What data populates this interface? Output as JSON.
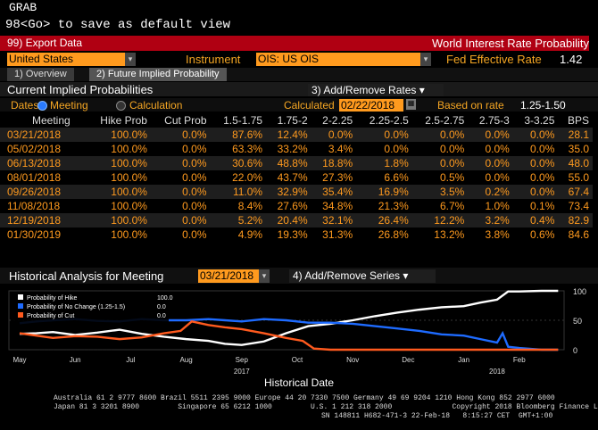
{
  "command": {
    "line1": "GRAB",
    "line2": "98<Go> to save as default view"
  },
  "toolbar": {
    "export": "99) Export Data",
    "title": "World Interest Rate Probability"
  },
  "filters": {
    "country": "United States",
    "instrument_label": "Instrument",
    "instrument": "OIS: US OIS",
    "fed_rate_label": "Fed Effective Rate",
    "fed_rate_value": "1.42"
  },
  "tabs": [
    {
      "label": "1) Overview"
    },
    {
      "label": "2) Future Implied Probability"
    }
  ],
  "section": {
    "title": "Current Implied Probabilities",
    "add_remove": "3) Add/Remove Rates ▾"
  },
  "options": {
    "dates_label": "Dates",
    "meeting_label": "Meeting",
    "calculation_label": "Calculation",
    "calculated_label": "Calculated",
    "calculated_date": "02/22/2018",
    "based_label": "Based on rate",
    "based_value": "1.25-1.50"
  },
  "table": {
    "headers": [
      "Meeting",
      "Hike Prob",
      "Cut Prob",
      "1.5-1.75",
      "1.75-2",
      "2-2.25",
      "2.25-2.5",
      "2.5-2.75",
      "2.75-3",
      "3-3.25",
      "BPS"
    ],
    "rows": [
      [
        "03/21/2018",
        "100.0%",
        "0.0%",
        "87.6%",
        "12.4%",
        "0.0%",
        "0.0%",
        "0.0%",
        "0.0%",
        "0.0%",
        "28.1"
      ],
      [
        "05/02/2018",
        "100.0%",
        "0.0%",
        "63.3%",
        "33.2%",
        "3.4%",
        "0.0%",
        "0.0%",
        "0.0%",
        "0.0%",
        "35.0"
      ],
      [
        "06/13/2018",
        "100.0%",
        "0.0%",
        "30.6%",
        "48.8%",
        "18.8%",
        "1.8%",
        "0.0%",
        "0.0%",
        "0.0%",
        "48.0"
      ],
      [
        "08/01/2018",
        "100.0%",
        "0.0%",
        "22.0%",
        "43.7%",
        "27.3%",
        "6.6%",
        "0.5%",
        "0.0%",
        "0.0%",
        "55.0"
      ],
      [
        "09/26/2018",
        "100.0%",
        "0.0%",
        "11.0%",
        "32.9%",
        "35.4%",
        "16.9%",
        "3.5%",
        "0.2%",
        "0.0%",
        "67.4"
      ],
      [
        "11/08/2018",
        "100.0%",
        "0.0%",
        "8.4%",
        "27.6%",
        "34.8%",
        "21.3%",
        "6.7%",
        "1.0%",
        "0.1%",
        "73.4"
      ],
      [
        "12/19/2018",
        "100.0%",
        "0.0%",
        "5.2%",
        "20.4%",
        "32.1%",
        "26.4%",
        "12.2%",
        "3.2%",
        "0.4%",
        "82.9"
      ],
      [
        "01/30/2019",
        "100.0%",
        "0.0%",
        "4.9%",
        "19.3%",
        "31.3%",
        "26.8%",
        "13.2%",
        "3.8%",
        "0.6%",
        "84.6"
      ]
    ]
  },
  "history": {
    "title": "Historical Analysis for Meeting",
    "meeting_date": "03/21/2018",
    "series_btn": "4) Add/Remove Series ▾"
  },
  "chart_data": {
    "type": "line",
    "xlabel": "Historical Date",
    "x_ticks": [
      "May",
      "Jun",
      "Jul",
      "Aug",
      "Sep",
      "Oct",
      "Nov",
      "Dec",
      "Jan",
      "Feb"
    ],
    "year_labels": [
      "2017",
      "2018"
    ],
    "y_ticks": [
      0,
      50,
      100
    ],
    "ylim": [
      0,
      100
    ],
    "legend": [
      {
        "name": "Probability of Hike",
        "value": "100.0",
        "color": "#ffffff"
      },
      {
        "name": "Probability of No Change (1.25-1.5)",
        "value": "0.0",
        "color": "#1e6bff"
      },
      {
        "name": "Probability of Cut",
        "value": "0.0",
        "color": "#ff5a1e"
      }
    ],
    "series": [
      {
        "name": "Probability of Hike",
        "color": "#ffffff",
        "x": [
          0,
          0.3,
          0.6,
          1.0,
          1.4,
          1.8,
          2.2,
          2.6,
          3.0,
          3.4,
          3.7,
          4.0,
          4.4,
          4.8,
          5.2,
          5.6,
          6.0,
          6.4,
          6.8,
          7.2,
          7.6,
          8.0,
          8.3,
          8.6,
          8.8,
          9.0,
          9.4,
          9.7
        ],
        "values": [
          27,
          28,
          30,
          25,
          29,
          34,
          27,
          22,
          18,
          15,
          10,
          8,
          14,
          28,
          40,
          44,
          50,
          57,
          63,
          68,
          72,
          74,
          80,
          85,
          99,
          99,
          100,
          100
        ]
      },
      {
        "name": "Probability of No Change (1.25-1.5)",
        "color": "#1e6bff",
        "x": [
          0,
          0.3,
          0.6,
          1.0,
          1.4,
          1.8,
          2.2,
          2.6,
          3.0,
          3.4,
          3.7,
          4.0,
          4.4,
          4.8,
          5.2,
          5.6,
          6.0,
          6.4,
          6.8,
          7.2,
          7.6,
          8.0,
          8.3,
          8.6,
          8.7,
          8.8,
          9.0,
          9.4,
          9.7
        ],
        "values": [
          45,
          48,
          50,
          52,
          49,
          48,
          52,
          50,
          50,
          52,
          50,
          48,
          52,
          50,
          46,
          46,
          44,
          40,
          36,
          32,
          26,
          24,
          18,
          12,
          28,
          5,
          3,
          0,
          0
        ]
      },
      {
        "name": "Probability of Cut",
        "color": "#ff5a1e",
        "x": [
          0,
          0.3,
          0.6,
          1.0,
          1.4,
          1.8,
          2.2,
          2.6,
          2.9,
          3.1,
          3.4,
          3.7,
          4.0,
          4.4,
          4.8,
          5.1,
          5.3,
          5.6,
          6.0,
          6.4,
          6.8,
          7.2,
          7.6,
          8.0,
          8.4,
          8.8,
          9.2,
          9.7
        ],
        "values": [
          28,
          24,
          20,
          23,
          22,
          18,
          21,
          28,
          32,
          48,
          42,
          38,
          35,
          28,
          20,
          15,
          2,
          0,
          0,
          0,
          0,
          0,
          0,
          0,
          0,
          0,
          0,
          0
        ]
      }
    ]
  },
  "footer": {
    "line1": "Australia 61 2 9777 8600 Brazil 5511 2395 9000 Europe 44 20 7330 7500 Germany 49 69 9204 1210 Hong Kong 852 2977 6000",
    "line2": "Japan 81 3 3201 8900         Singapore 65 6212 1000         U.S. 1 212 318 2000              Copyright 2018 Bloomberg Finance L.P.",
    "line3": "SN 148811 H682-471-3 22-Feb-18   8:15:27 CET  GMT+1:00"
  }
}
